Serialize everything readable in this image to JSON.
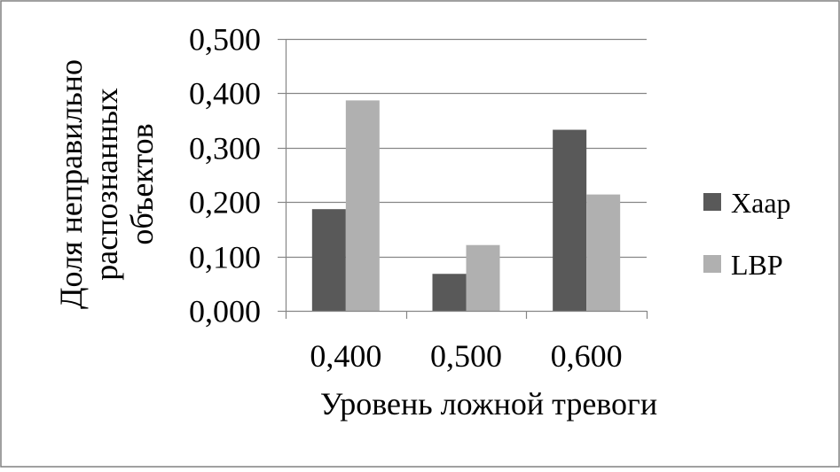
{
  "chart_data": {
    "type": "bar",
    "title": "",
    "xlabel": "Уровень ложной тревоги",
    "ylabel_lines": [
      "Доля неправильно",
      "распознанных",
      "объектов"
    ],
    "categories": [
      "0,400",
      "0,500",
      "0,600"
    ],
    "series": [
      {
        "name": "Хаар",
        "values": [
          0.187,
          0.068,
          0.333
        ],
        "color": "#595959"
      },
      {
        "name": "LBP",
        "values": [
          0.387,
          0.121,
          0.214
        ],
        "color": "#b0b0b0"
      }
    ],
    "ylim": [
      0,
      0.5
    ],
    "yticks": [
      0,
      0.1,
      0.2,
      0.3,
      0.4,
      0.5
    ],
    "ytick_labels": [
      "0,000",
      "0,100",
      "0,200",
      "0,300",
      "0,400",
      "0,500"
    ],
    "grid": true,
    "legend_position": "right"
  }
}
